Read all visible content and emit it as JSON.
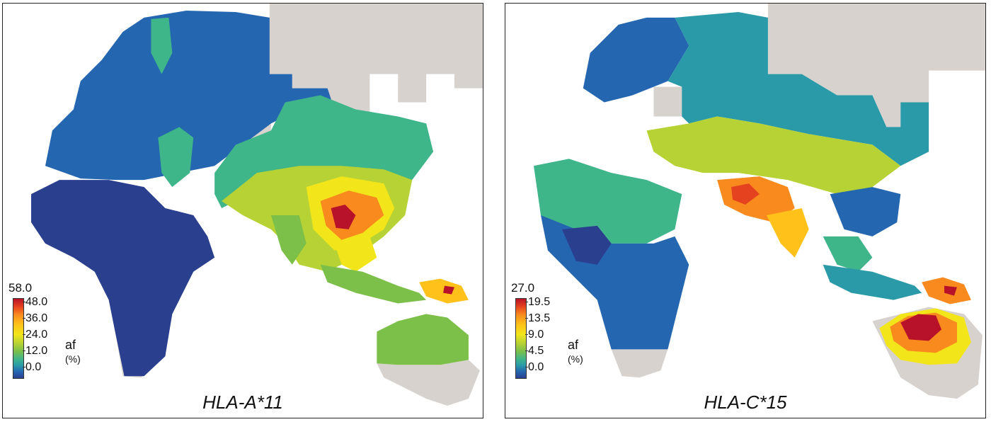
{
  "panels": [
    {
      "title": "HLA-A*11",
      "legend": {
        "max": "58.0",
        "ticks": [
          "48.0",
          "36.0",
          "24.0",
          "12.0",
          "0.0"
        ],
        "unit": "af",
        "unit_pct": "(%)"
      }
    },
    {
      "title": "HLA-C*15",
      "legend": {
        "max": "27.0",
        "ticks": [
          "19.5",
          "13.5",
          "9.0",
          "4.5",
          "0.0"
        ],
        "unit": "af",
        "unit_pct": "(%)"
      }
    }
  ],
  "colors": {
    "no_data": "#d8d2cf",
    "ocean": "#ffffff",
    "scale": [
      "#2b3f8f",
      "#2566b0",
      "#2a9aa8",
      "#3fb58a",
      "#7cc04a",
      "#b7d234",
      "#f2e61a",
      "#ffc11a",
      "#f98a1e",
      "#e5431f",
      "#b8122a"
    ]
  }
}
